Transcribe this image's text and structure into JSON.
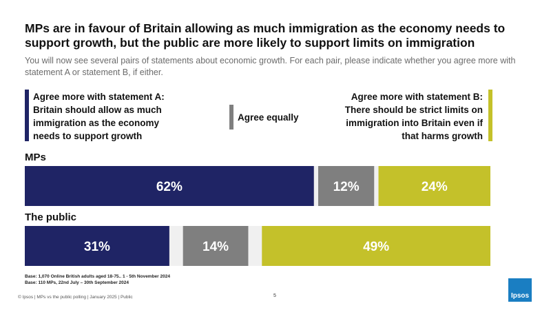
{
  "chart_data": {
    "type": "bar",
    "title": "MPs are in favour of Britain allowing as much immigration as the economy needs to support growth, but the public are more likely to support limits on immigration",
    "subtitle": "You will now see several pairs of statements about economic growth. For each pair, please indicate whether you agree more with statement A or statement B, if either.",
    "categories": [
      "MPs",
      "The public"
    ],
    "series": [
      {
        "name": "Agree more with statement A: Britain should allow as much immigration as the economy needs to support growth",
        "color": "#1f2465",
        "values": [
          62,
          31
        ],
        "value_labels": [
          "62%",
          "31%"
        ]
      },
      {
        "name": "Agree equally",
        "color": "#7f7f7f",
        "values": [
          12,
          14
        ],
        "value_labels": [
          "12%",
          "14%"
        ]
      },
      {
        "name": "Agree more with statement B: There should be strict limits on immigration into Britain even if that harms growth",
        "color": "#c4c12a",
        "values": [
          24,
          49
        ],
        "value_labels": [
          "24%",
          "49%"
        ]
      }
    ],
    "footnotes": [
      "Base: 1,070 Online British adults aged 18-75.. 1 - 5th November 2024",
      "Base: 110 MPs, 22nd July – 30th September 2024"
    ],
    "footer": "© Ipsos | MPs vs the public polling | January 2025 | Public",
    "page_number": "5",
    "logo": "Ipsos"
  }
}
